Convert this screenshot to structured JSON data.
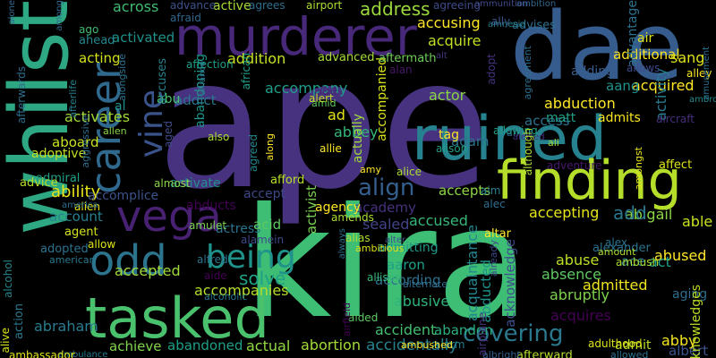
{
  "words": [
    {
      "text": "ape",
      "color": "#46327e"
    },
    {
      "text": "kira",
      "color": "#3ebd74"
    },
    {
      "text": "dae",
      "color": "#365c8d"
    },
    {
      "text": "whilst",
      "color": "#2ea883"
    },
    {
      "text": "murderer",
      "color": "#482878"
    },
    {
      "text": "ruined",
      "color": "#26828e"
    },
    {
      "text": "finding",
      "color": "#b5de2b"
    },
    {
      "text": "tasked",
      "color": "#4ac16d"
    },
    {
      "text": "career",
      "color": "#30698e"
    },
    {
      "text": "vega",
      "color": "#482173"
    },
    {
      "text": "odd",
      "color": "#2c738e"
    },
    {
      "text": "being",
      "color": "#20928c"
    },
    {
      "text": "vine",
      "color": "#3a538b"
    },
    {
      "text": "covering",
      "color": "#2a788e"
    },
    {
      "text": "align",
      "color": "#355f8d"
    },
    {
      "text": "solve",
      "color": "#1fa187"
    },
    {
      "text": "abduction",
      "color": "#fde725"
    },
    {
      "text": "ruined",
      "color": "#26828e"
    },
    {
      "text": "acquire",
      "color": "#c2df23"
    },
    {
      "text": "address",
      "color": "#9bd93c"
    },
    {
      "text": "accusing",
      "color": "#fde725"
    },
    {
      "text": "access",
      "color": "#2c728e"
    },
    {
      "text": "across",
      "color": "#3fbc73"
    },
    {
      "text": "activated",
      "color": "#20928c"
    },
    {
      "text": "acting",
      "color": "#d2e21b"
    },
    {
      "text": "addition",
      "color": "#c5e021"
    },
    {
      "text": "accompany",
      "color": "#1f9e89"
    },
    {
      "text": "abandoning",
      "color": "#1f968b"
    },
    {
      "text": "activates",
      "color": "#a2da37"
    },
    {
      "text": "aboard",
      "color": "#cae11f"
    },
    {
      "text": "ability",
      "color": "#e7e419"
    },
    {
      "text": "accomplice",
      "color": "#3b528b"
    },
    {
      "text": "account",
      "color": "#26828e"
    },
    {
      "text": "abducts",
      "color": "#440154"
    },
    {
      "text": "activate",
      "color": "#218f8d"
    },
    {
      "text": "accept",
      "color": "#3e4989"
    },
    {
      "text": "academy",
      "color": "#46327e"
    },
    {
      "text": "actress",
      "color": "#2b748e"
    },
    {
      "text": "accused",
      "color": "#35b779"
    },
    {
      "text": "accepts",
      "color": "#8ed645"
    },
    {
      "text": "accepting",
      "color": "#e5e419"
    },
    {
      "text": "abigail",
      "color": "#8bd646"
    },
    {
      "text": "add",
      "color": "#2a788e"
    },
    {
      "text": "able",
      "color": "#c8e020"
    },
    {
      "text": "abused",
      "color": "#fde725"
    },
    {
      "text": "ace",
      "color": "#277f8e"
    },
    {
      "text": "act",
      "color": "#1fa088"
    },
    {
      "text": "abuse",
      "color": "#bddf26"
    },
    {
      "text": "absence",
      "color": "#5ec962"
    },
    {
      "text": "admitted",
      "color": "#f1e51d"
    },
    {
      "text": "abruptly",
      "color": "#7fd34e"
    },
    {
      "text": "aging",
      "color": "#2e6e8e"
    },
    {
      "text": "acquires",
      "color": "#440154"
    },
    {
      "text": "accident",
      "color": "#44bf70"
    },
    {
      "text": "abandon",
      "color": "#2ab07f"
    },
    {
      "text": "accidentally",
      "color": "#26828e"
    },
    {
      "text": "admit",
      "color": "#bade28"
    },
    {
      "text": "abby",
      "color": "#f6e620"
    },
    {
      "text": "albert",
      "color": "#3b528b"
    },
    {
      "text": "accepted",
      "color": "#a0da39"
    },
    {
      "text": "accompanies",
      "color": "#b5de2b"
    },
    {
      "text": "abusive",
      "color": "#2fb47c"
    },
    {
      "text": "aaron",
      "color": "#1fa088"
    },
    {
      "text": "according",
      "color": "#2d708e"
    },
    {
      "text": "abraham",
      "color": "#287c8e"
    },
    {
      "text": "achieve",
      "color": "#81d34d"
    },
    {
      "text": "abandoned",
      "color": "#1f9f88"
    },
    {
      "text": "actual",
      "color": "#93d741"
    },
    {
      "text": "abortion",
      "color": "#a2da37"
    },
    {
      "text": "acid",
      "color": "#5ec962"
    },
    {
      "text": "actor",
      "color": "#8bd646"
    },
    {
      "text": "adam",
      "color": "#2c728e"
    },
    {
      "text": "tag",
      "color": "#fde725"
    },
    {
      "text": "abbey",
      "color": "#35b779"
    },
    {
      "text": "ad",
      "color": "#e2e418"
    },
    {
      "text": "age",
      "color": "#482475"
    },
    {
      "text": "addict",
      "color": "#2b758e"
    },
    {
      "text": "abu",
      "color": "#4ac16d"
    },
    {
      "text": "matt",
      "color": "#1fa187"
    },
    {
      "text": "admits",
      "color": "#f8e621"
    },
    {
      "text": "acquired",
      "color": "#fde725"
    },
    {
      "text": "aang",
      "color": "#21918c"
    },
    {
      "text": "adding",
      "color": "#365d8d"
    },
    {
      "text": "additional",
      "color": "#fde725"
    },
    {
      "text": "sang",
      "color": "#dde318"
    },
    {
      "text": "agreeing",
      "color": "#3e4a89"
    },
    {
      "text": "advises",
      "color": "#2e6f8e"
    },
    {
      "text": "ahead",
      "color": "#24878e"
    },
    {
      "text": "ago",
      "color": "#3dbc74"
    },
    {
      "text": "activity",
      "color": "#287c8e"
    },
    {
      "text": "advantage",
      "color": "#2c728e"
    },
    {
      "text": "alley",
      "color": "#fde725"
    },
    {
      "text": "aircraft",
      "color": "#472f7d"
    },
    {
      "text": "affect",
      "color": "#dde318"
    },
    {
      "text": "adventure",
      "color": "#48186a"
    },
    {
      "text": "actually",
      "color": "#a0da39"
    },
    {
      "text": "accompanied",
      "color": "#d8e219"
    },
    {
      "text": "acquaintance",
      "color": "#24868e"
    },
    {
      "text": "abducted",
      "color": "#1f948c"
    },
    {
      "text": "acknowledge",
      "color": "#3c4f8a"
    },
    {
      "text": "acknowledges",
      "color": "#bddf26"
    },
    {
      "text": "activist",
      "color": "#7ad151"
    },
    {
      "text": "agency",
      "color": "#fde725"
    },
    {
      "text": "sealed",
      "color": "#414487"
    },
    {
      "text": "admitting",
      "color": "#1e9b8a"
    },
    {
      "text": "afford",
      "color": "#b8de29"
    },
    {
      "text": "agent",
      "color": "#d5e21a"
    },
    {
      "text": "adopted",
      "color": "#2c728e"
    },
    {
      "text": "adoptive",
      "color": "#c0df25"
    },
    {
      "text": "admiral",
      "color": "#1fa187"
    },
    {
      "text": "advice",
      "color": "#b5de2b"
    },
    {
      "text": "action",
      "color": "#2a788e"
    },
    {
      "text": "accuses",
      "color": "#26828e"
    },
    {
      "text": "affection",
      "color": "#1fa088"
    },
    {
      "text": "advanced",
      "color": "#a5db36"
    },
    {
      "text": "aftermath",
      "color": "#6ece58"
    },
    {
      "text": "alan",
      "color": "#481769"
    },
    {
      "text": "active",
      "color": "#a8db34"
    },
    {
      "text": "advance",
      "color": "#3b528b"
    },
    {
      "text": "agrees",
      "color": "#2e6e8e"
    },
    {
      "text": "airport",
      "color": "#addc30"
    },
    {
      "text": "afraid",
      "color": "#31688e"
    },
    {
      "text": "ally",
      "color": "#3b528b"
    },
    {
      "text": "ambition",
      "color": "#31688e"
    },
    {
      "text": "ammunition",
      "color": "#3e4989"
    },
    {
      "text": "allows",
      "color": "#3e4989"
    },
    {
      "text": "air",
      "color": "#dde318"
    },
    {
      "text": "amusement",
      "color": "#2e6e8e"
    },
    {
      "text": "ambrose",
      "color": "#23888e"
    },
    {
      "text": "always",
      "color": "#2c728e"
    },
    {
      "text": "alter",
      "color": "#3b528b"
    },
    {
      "text": "alamein",
      "color": "#3e4989"
    },
    {
      "text": "alfred",
      "color": "#2b748e"
    },
    {
      "text": "aide",
      "color": "#440154"
    },
    {
      "text": "alcoholic",
      "color": "#2a788e"
    },
    {
      "text": "allison",
      "color": "#35b779"
    },
    {
      "text": "alternate",
      "color": "#2e6e8e"
    },
    {
      "text": "aided",
      "color": "#5ec962"
    },
    {
      "text": "airfield",
      "color": "#440154"
    },
    {
      "text": "airplane",
      "color": "#46327e"
    },
    {
      "text": "already",
      "color": "#3e4989"
    },
    {
      "text": "alarm",
      "color": "#277f8e"
    },
    {
      "text": "ambushed",
      "color": "#fde725"
    },
    {
      "text": "afterward",
      "color": "#b5de2b"
    },
    {
      "text": "adulthood",
      "color": "#dde318"
    },
    {
      "text": "allowed",
      "color": "#2c728e"
    },
    {
      "text": "albright",
      "color": "#355f8d"
    },
    {
      "text": "ambulance",
      "color": "#2a788e"
    },
    {
      "text": "ambassador",
      "color": "#e2e418"
    },
    {
      "text": "alcohol",
      "color": "#24878e"
    },
    {
      "text": "alive",
      "color": "#d8e219"
    },
    {
      "text": "alone",
      "color": "#31688e"
    },
    {
      "text": "afterwards",
      "color": "#2e6e8e"
    },
    {
      "text": "amid",
      "color": "#5ec962"
    },
    {
      "text": "alert",
      "color": "#c0df25"
    },
    {
      "text": "ali",
      "color": "#a5db36"
    },
    {
      "text": "affair",
      "color": "#31688e"
    },
    {
      "text": "alerted",
      "color": "#472f7d"
    },
    {
      "text": "allen",
      "color": "#8bd646"
    },
    {
      "text": "al",
      "color": "#21918c"
    },
    {
      "text": "afterlife",
      "color": "#277f8e"
    },
    {
      "text": "aggressive",
      "color": "#2e6e8e"
    },
    {
      "text": "alongside",
      "color": "#2c728e"
    },
    {
      "text": "alliance",
      "color": "#2e6e8e"
    },
    {
      "text": "african",
      "color": "#1fa088"
    },
    {
      "text": "aged",
      "color": "#3e4a89"
    },
    {
      "text": "also",
      "color": "#addc30"
    },
    {
      "text": "agreed",
      "color": "#24878e"
    },
    {
      "text": "along",
      "color": "#fde725"
    },
    {
      "text": "allie",
      "color": "#fde725"
    },
    {
      "text": "alison",
      "color": "#1fa188"
    },
    {
      "text": "allowing",
      "color": "#1fa088"
    },
    {
      "text": "although",
      "color": "#addc30"
    },
    {
      "text": "amongst",
      "color": "#e7e419"
    },
    {
      "text": "amy",
      "color": "#fde725"
    },
    {
      "text": "alice",
      "color": "#addc30"
    },
    {
      "text": "amulet",
      "color": "#7ad151"
    },
    {
      "text": "almost",
      "color": "#8bd646"
    },
    {
      "text": "alien",
      "color": "#dde318"
    },
    {
      "text": "america",
      "color": "#2e6e8e"
    },
    {
      "text": "american",
      "color": "#2a788e"
    },
    {
      "text": "allow",
      "color": "#dde318"
    },
    {
      "text": "amends",
      "color": "#addc30"
    },
    {
      "text": "alias",
      "color": "#addc30"
    },
    {
      "text": "ambitious",
      "color": "#dde318"
    },
    {
      "text": "aim",
      "color": "#26828e"
    },
    {
      "text": "alec",
      "color": "#2e6e8e"
    },
    {
      "text": "altar",
      "color": "#fde725"
    },
    {
      "text": "alexander",
      "color": "#2c728e"
    },
    {
      "text": "alex",
      "color": "#2c728e"
    },
    {
      "text": "amount",
      "color": "#addc30"
    },
    {
      "text": "ambush",
      "color": "#addc30"
    },
    {
      "text": "amnesia",
      "color": "#277f8e"
    },
    {
      "text": "agreement",
      "color": "#2e6e8e"
    },
    {
      "text": "alt",
      "color": "#46327e"
    },
    {
      "text": "adopt",
      "color": "#46327e"
    },
    {
      "text": "among",
      "color": "#31688e"
    }
  ]
}
